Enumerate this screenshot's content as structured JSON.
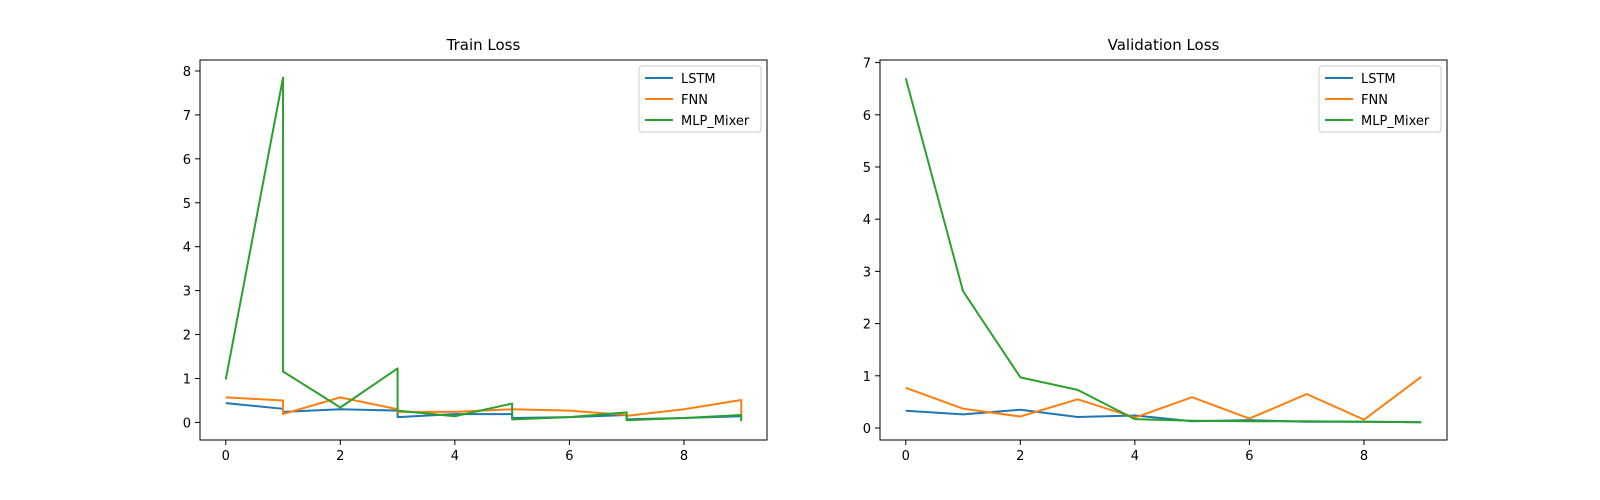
{
  "chart_data": [
    {
      "type": "line",
      "title": "Train Loss",
      "xlabel": "",
      "ylabel": "",
      "xlim": [
        -0.45,
        9.45
      ],
      "ylim": [
        -0.4,
        8.25
      ],
      "xticks": [
        0,
        2,
        4,
        6,
        8
      ],
      "yticks": [
        0,
        1,
        2,
        3,
        4,
        5,
        6,
        7,
        8
      ],
      "grid": false,
      "legend_position": "top-right",
      "series": [
        {
          "name": "LSTM",
          "color": "#1f77b4",
          "points": [
            [
              0,
              0.44
            ],
            [
              1,
              0.31
            ],
            [
              1,
              0.24
            ],
            [
              2,
              0.3
            ],
            [
              3,
              0.27
            ],
            [
              3,
              0.12
            ],
            [
              4,
              0.19
            ],
            [
              5,
              0.19
            ],
            [
              5,
              0.1
            ],
            [
              6,
              0.12
            ],
            [
              7,
              0.17
            ],
            [
              7,
              0.07
            ],
            [
              8,
              0.1
            ],
            [
              9,
              0.14
            ],
            [
              9,
              0.14
            ]
          ]
        },
        {
          "name": "FNN",
          "color": "#ff7f0e",
          "points": [
            [
              0,
              0.57
            ],
            [
              1,
              0.5
            ],
            [
              1,
              0.19
            ],
            [
              2,
              0.57
            ],
            [
              3,
              0.3
            ],
            [
              3,
              0.24
            ],
            [
              4,
              0.24
            ],
            [
              5,
              0.3
            ],
            [
              5,
              0.3
            ],
            [
              6,
              0.27
            ],
            [
              7,
              0.17
            ],
            [
              7,
              0.15
            ],
            [
              8,
              0.3
            ],
            [
              9,
              0.51
            ],
            [
              9,
              0.17
            ]
          ]
        },
        {
          "name": "MLP_Mixer",
          "color": "#2ca02c",
          "points": [
            [
              0,
              0.98
            ],
            [
              1,
              7.85
            ],
            [
              1,
              1.16
            ],
            [
              2,
              0.34
            ],
            [
              3,
              1.23
            ],
            [
              3,
              0.27
            ],
            [
              4,
              0.14
            ],
            [
              5,
              0.43
            ],
            [
              5,
              0.07
            ],
            [
              6,
              0.12
            ],
            [
              7,
              0.23
            ],
            [
              7,
              0.05
            ],
            [
              8,
              0.1
            ],
            [
              9,
              0.17
            ],
            [
              9,
              0.03
            ]
          ]
        }
      ]
    },
    {
      "type": "line",
      "title": "Validation Loss",
      "xlabel": "",
      "ylabel": "",
      "xlim": [
        -0.45,
        9.45
      ],
      "ylim": [
        -0.23,
        7.05
      ],
      "xticks": [
        0,
        2,
        4,
        6,
        8
      ],
      "yticks": [
        0,
        1,
        2,
        3,
        4,
        5,
        6,
        7
      ],
      "grid": false,
      "legend_position": "top-right",
      "series": [
        {
          "name": "LSTM",
          "color": "#1f77b4",
          "points": [
            [
              0,
              0.33
            ],
            [
              1,
              0.26
            ],
            [
              2,
              0.35
            ],
            [
              3,
              0.21
            ],
            [
              4,
              0.24
            ],
            [
              5,
              0.13
            ],
            [
              6,
              0.15
            ],
            [
              7,
              0.12
            ],
            [
              8,
              0.12
            ],
            [
              9,
              0.11
            ]
          ]
        },
        {
          "name": "FNN",
          "color": "#ff7f0e",
          "points": [
            [
              0,
              0.77
            ],
            [
              1,
              0.37
            ],
            [
              2,
              0.22
            ],
            [
              3,
              0.55
            ],
            [
              4,
              0.2
            ],
            [
              5,
              0.59
            ],
            [
              6,
              0.18
            ],
            [
              7,
              0.65
            ],
            [
              8,
              0.16
            ],
            [
              9,
              0.98
            ]
          ]
        },
        {
          "name": "MLP_Mixer",
          "color": "#2ca02c",
          "points": [
            [
              0,
              6.7
            ],
            [
              1,
              2.62
            ],
            [
              2,
              0.97
            ],
            [
              3,
              0.73
            ],
            [
              4,
              0.17
            ],
            [
              5,
              0.14
            ],
            [
              6,
              0.13
            ],
            [
              7,
              0.13
            ],
            [
              8,
              0.12
            ],
            [
              9,
              0.11
            ]
          ]
        }
      ]
    }
  ]
}
